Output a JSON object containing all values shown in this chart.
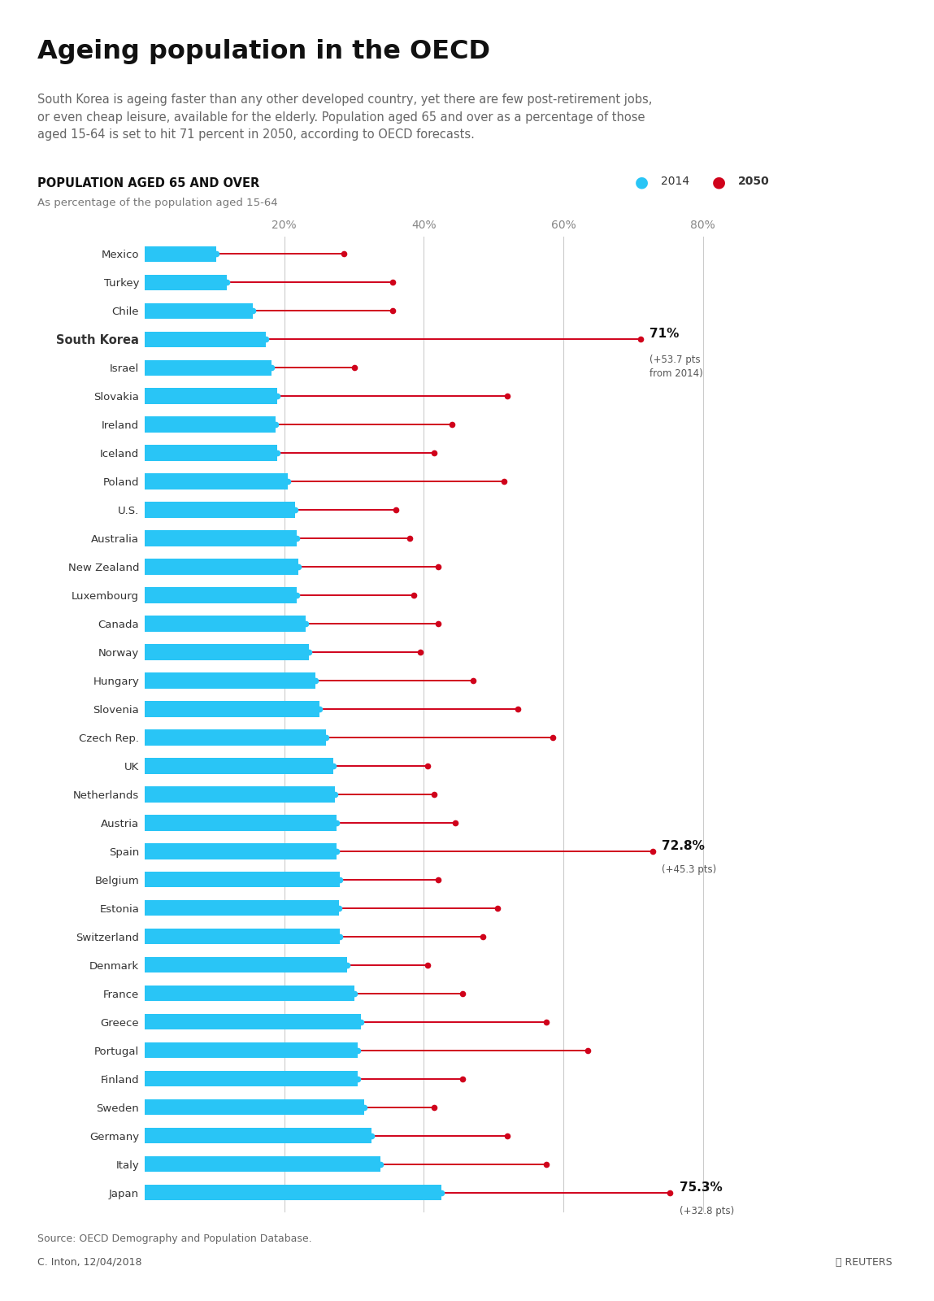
{
  "title": "Ageing population in the OECD",
  "subtitle": "South Korea is ageing faster than any other developed country, yet there are few post-retirement jobs,\nor even cheap leisure, available for the elderly. Population aged 65 and over as a percentage of those\naged 15-64 is set to hit 71 percent in 2050, according to OECD forecasts.",
  "section_title": "POPULATION AGED 65 AND OVER",
  "section_subtitle": "As percentage of the population aged 15-64",
  "legend_2014": "2014",
  "legend_2050": "2050",
  "source": "Source: OECD Demography and Population Database.",
  "credit": "C. Inton, 12/04/2018",
  "countries": [
    "Mexico",
    "Turkey",
    "Chile",
    "South Korea",
    "Israel",
    "Slovakia",
    "Ireland",
    "Iceland",
    "Poland",
    "U.S.",
    "Australia",
    "New Zealand",
    "Luxembourg",
    "Canada",
    "Norway",
    "Hungary",
    "Slovenia",
    "Czech Rep.",
    "UK",
    "Netherlands",
    "Austria",
    "Spain",
    "Belgium",
    "Estonia",
    "Switzerland",
    "Denmark",
    "France",
    "Greece",
    "Portugal",
    "Finland",
    "Sweden",
    "Germany",
    "Italy",
    "Japan"
  ],
  "values_2014": [
    10.2,
    11.8,
    15.5,
    17.3,
    18.2,
    19.0,
    18.8,
    19.0,
    20.5,
    21.5,
    21.8,
    22.0,
    21.8,
    23.0,
    23.5,
    24.5,
    25.0,
    26.0,
    27.0,
    27.3,
    27.5,
    27.5,
    28.0,
    27.8,
    28.0,
    29.0,
    30.0,
    31.0,
    30.5,
    30.5,
    31.5,
    32.5,
    33.8,
    42.5
  ],
  "values_2050": [
    28.5,
    35.5,
    35.5,
    71.0,
    30.0,
    52.0,
    44.0,
    41.5,
    51.5,
    36.0,
    38.0,
    42.0,
    38.5,
    42.0,
    39.5,
    47.0,
    53.5,
    58.5,
    40.5,
    41.5,
    44.5,
    72.8,
    42.0,
    50.5,
    48.5,
    40.5,
    45.5,
    57.5,
    63.5,
    45.5,
    41.5,
    52.0,
    57.5,
    75.3
  ],
  "bold_countries": [
    "South Korea"
  ],
  "annotations": {
    "South Korea": {
      "value_label": "71%",
      "detail": "(+53.7 pts\nfrom 2014)"
    },
    "Spain": {
      "value_label": "72.8%",
      "detail": "(+45.3 pts)"
    },
    "Japan": {
      "value_label": "75.3%",
      "detail": "(+32.8 pts)"
    }
  },
  "color_2014": "#29C5F6",
  "color_2050": "#D0021B",
  "xmin": 0,
  "xmax": 85,
  "xtick_positions": [
    20,
    40,
    60,
    80
  ],
  "xtick_labels": [
    "20%",
    "40%",
    "60%",
    "80%"
  ],
  "background_color": "#FFFFFF",
  "grid_color": "#CCCCCC",
  "bar_height": 0.55
}
